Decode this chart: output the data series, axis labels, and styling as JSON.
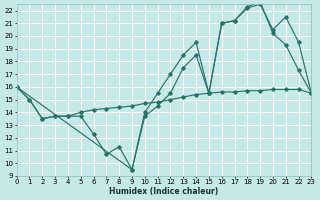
{
  "bg_color": "#c5e8e8",
  "grid_color": "#b0d8d8",
  "line_color": "#2d7068",
  "xlabel": "Humidex (Indice chaleur)",
  "xlim": [
    0,
    23
  ],
  "ylim": [
    9,
    22.5
  ],
  "xticks": [
    0,
    1,
    2,
    3,
    4,
    5,
    6,
    7,
    8,
    9,
    10,
    11,
    12,
    13,
    14,
    15,
    16,
    17,
    18,
    19,
    20,
    21,
    22,
    23
  ],
  "yticks": [
    9,
    10,
    11,
    12,
    13,
    14,
    15,
    16,
    17,
    18,
    19,
    20,
    21,
    22
  ],
  "line1_x": [
    0,
    1,
    2,
    3,
    4,
    5,
    6,
    7,
    8,
    9,
    10,
    11,
    12,
    13,
    14,
    15,
    16,
    17,
    18,
    19,
    20,
    21,
    22,
    23
  ],
  "line1_y": [
    16.0,
    15.0,
    13.5,
    13.7,
    13.7,
    13.7,
    12.3,
    10.7,
    11.3,
    9.5,
    13.7,
    14.5,
    15.5,
    17.5,
    18.5,
    15.5,
    21.0,
    21.2,
    22.3,
    22.7,
    20.2,
    19.3,
    17.3,
    15.5
  ],
  "line2_x": [
    0,
    1,
    2,
    3,
    4,
    5,
    6,
    7,
    8,
    9,
    10,
    11,
    12,
    13,
    14,
    15,
    16,
    17,
    18,
    19,
    20,
    21,
    22,
    23
  ],
  "line2_y": [
    16.0,
    15.0,
    13.5,
    13.7,
    13.7,
    14.0,
    14.2,
    14.3,
    14.4,
    14.5,
    14.7,
    14.8,
    15.0,
    15.2,
    15.4,
    15.5,
    15.6,
    15.6,
    15.7,
    15.7,
    15.8,
    15.8,
    15.8,
    15.5
  ],
  "line3_x": [
    0,
    9,
    10,
    11,
    12,
    13,
    14,
    15,
    16,
    17,
    18,
    19,
    20,
    21,
    22,
    23
  ],
  "line3_y": [
    16.0,
    9.5,
    14.0,
    15.5,
    17.0,
    18.5,
    19.5,
    15.5,
    21.0,
    21.2,
    22.2,
    22.5,
    20.5,
    21.5,
    19.5,
    15.5
  ]
}
